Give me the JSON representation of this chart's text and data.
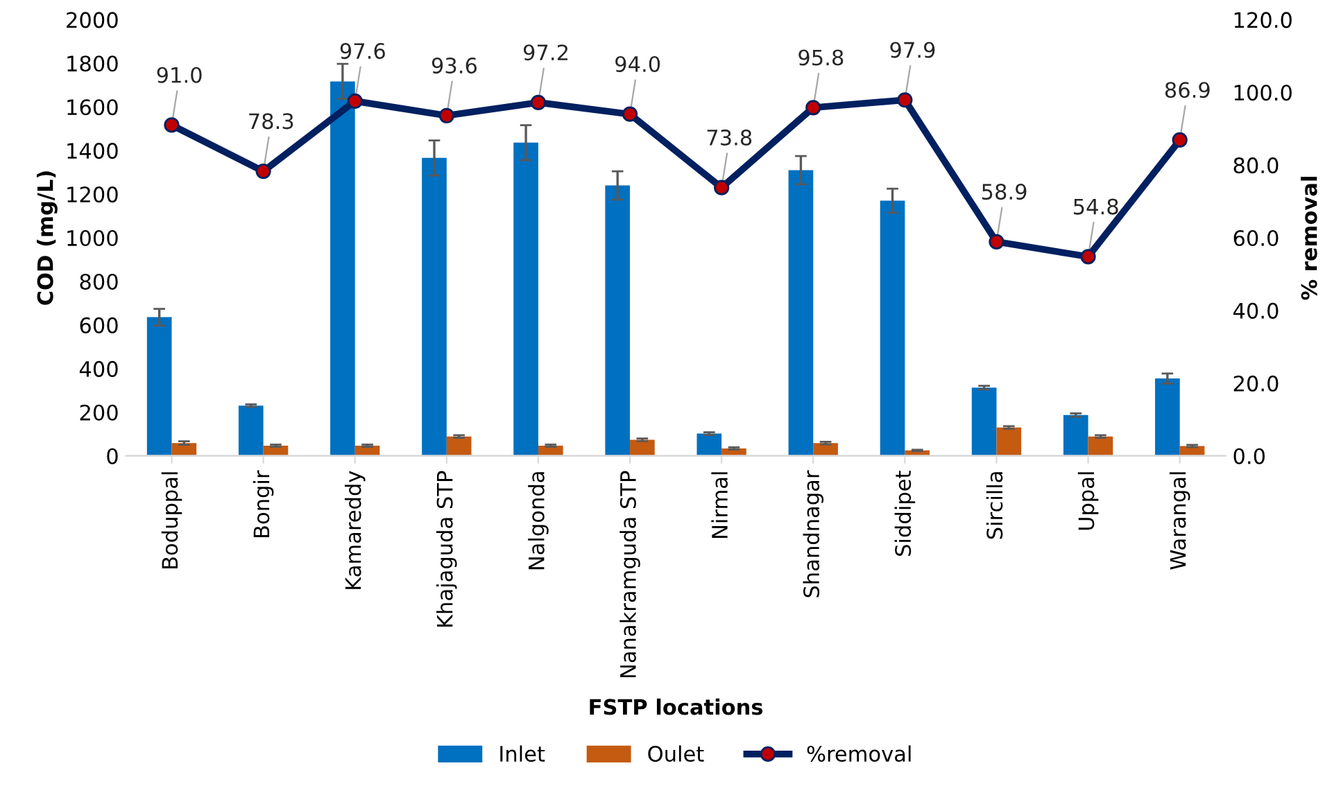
{
  "chart_data": {
    "type": "bar",
    "categories": [
      "Boduppal",
      "Bongir",
      "Kamareddy",
      "Khajaguda STP",
      "Nalgonda",
      "Nanakramguda STP",
      "Nirmal",
      "Shandnagar",
      "Siddipet",
      "Sircilla",
      "Uppal",
      "Warangal"
    ],
    "series": [
      {
        "name": "Inlet",
        "color": "#0070c0",
        "values": [
          636,
          230,
          1717,
          1366,
          1436,
          1240,
          102,
          1310,
          1170,
          313,
          187,
          355
        ],
        "errors": [
          38,
          6,
          80,
          80,
          80,
          65,
          6,
          65,
          55,
          8,
          8,
          23
        ]
      },
      {
        "name": "Oulet",
        "color": "#c55a11",
        "values": [
          59,
          47,
          47,
          89,
          47,
          74,
          34,
          59,
          25,
          130,
          89,
          45
        ],
        "errors": [
          8,
          5,
          5,
          6,
          5,
          6,
          5,
          6,
          3,
          6,
          6,
          5
        ]
      },
      {
        "name": "%removal",
        "type": "line",
        "axis": "y2",
        "color": "#002060",
        "marker": "circle",
        "colors": [
          "#c00000",
          "#c00000",
          "#c00000",
          "#c00000",
          "#c00000",
          "#c00000",
          "#c00000",
          "#c00000",
          "#c00000",
          "#c00000",
          "#c00000",
          "#c00000"
        ],
        "values": [
          91.0,
          78.3,
          97.6,
          93.6,
          97.2,
          94.0,
          73.8,
          95.8,
          97.9,
          58.9,
          54.8,
          86.9
        ],
        "value_labels": [
          "91.0",
          "78.3",
          "97.6",
          "93.6",
          "97.2",
          "94.0",
          "73.8",
          "95.8",
          "97.9",
          "58.9",
          "54.8",
          "86.9"
        ]
      }
    ],
    "xlabel": "FSTP locations",
    "ylabel": "COD (mg/L)",
    "y2label": "% removal",
    "ylim": [
      0,
      2000
    ],
    "yticks": [
      0,
      200,
      400,
      600,
      800,
      1000,
      1200,
      1400,
      1600,
      1800,
      2000
    ],
    "y2lim": [
      0,
      120
    ],
    "y2ticks": [
      {
        "value": 0,
        "label": "0.0"
      },
      {
        "value": 20,
        "label": "20.0"
      },
      {
        "value": 40,
        "label": "40.0"
      },
      {
        "value": 60,
        "label": "60.0"
      },
      {
        "value": 80,
        "label": "80.0"
      },
      {
        "value": 100,
        "label": "100.0"
      },
      {
        "value": 120,
        "label": "120.0"
      }
    ],
    "grid": false,
    "legend": "bottom"
  }
}
